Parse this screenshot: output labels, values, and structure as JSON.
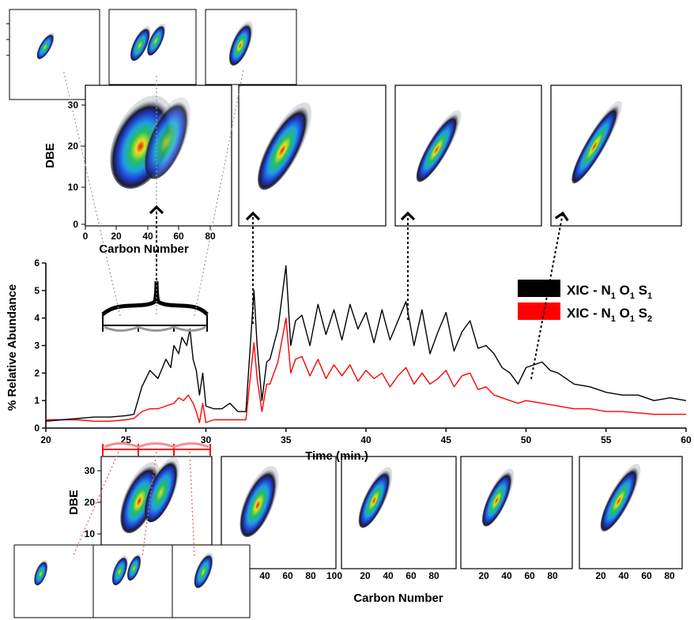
{
  "chart_data": [
    {
      "type": "line",
      "xlabel": "Time (min.)",
      "ylabel": "% Relative Abundance",
      "xlim": [
        20,
        60
      ],
      "ylim": [
        0,
        6
      ],
      "x_ticks": [
        "20",
        "25",
        "30",
        "35",
        "40",
        "45",
        "50",
        "55",
        "60"
      ],
      "y_ticks": [
        "0",
        "1",
        "2",
        "3",
        "4",
        "5",
        "6"
      ],
      "grid": false,
      "legend": {
        "placement": "right"
      },
      "series": [
        {
          "name": "XIC - N1 O1 S1",
          "label": {
            "base": "XIC - N",
            "s1": "1",
            "mid1": " O",
            "s2": "1",
            "mid2": " S",
            "s3": "1"
          },
          "color": "#000000",
          "x": [
            20,
            21,
            22,
            23,
            24,
            25,
            25.5,
            26,
            26.5,
            27,
            27.5,
            27.8,
            28,
            28.3,
            28.5,
            28.8,
            29,
            29.2,
            29.4,
            29.6,
            29.8,
            30,
            30.5,
            31,
            31.5,
            32,
            32.5,
            33,
            33.2,
            33.5,
            33.8,
            34,
            34.5,
            35,
            35.3,
            35.6,
            36,
            36.5,
            37,
            37.5,
            38,
            38.5,
            39,
            39.5,
            40,
            40.5,
            41,
            41.5,
            42,
            42.5,
            43,
            43.5,
            44,
            44.5,
            45,
            45.5,
            46,
            46.5,
            47,
            47.5,
            48,
            48.5,
            49,
            49.5,
            50,
            50.5,
            51,
            51.5,
            52,
            53,
            54,
            55,
            56,
            57,
            58,
            59,
            60
          ],
          "y": [
            0.25,
            0.3,
            0.35,
            0.4,
            0.4,
            0.45,
            0.5,
            1.5,
            2.1,
            1.8,
            2.5,
            2.2,
            3.0,
            2.7,
            3.3,
            3.0,
            3.6,
            2.5,
            2.1,
            1.2,
            2.0,
            0.8,
            0.7,
            0.7,
            0.9,
            0.6,
            0.6,
            5.0,
            3.0,
            1.0,
            2.4,
            2.5,
            3.6,
            5.9,
            3.0,
            3.9,
            4.1,
            3.0,
            4.5,
            3.4,
            4.3,
            3.2,
            4.5,
            3.6,
            4.2,
            3.1,
            4.3,
            3.2,
            3.9,
            4.6,
            3.0,
            4.3,
            2.7,
            3.5,
            4.2,
            2.8,
            3.5,
            3.9,
            2.9,
            3.0,
            2.7,
            2.2,
            2.0,
            1.6,
            2.2,
            2.3,
            2.4,
            2.1,
            2.0,
            1.6,
            1.5,
            1.3,
            1.2,
            1.2,
            1.0,
            1.1,
            1.0
          ]
        },
        {
          "name": "XIC - N1 O1 S2",
          "label": {
            "base": "XIC - N",
            "s1": "1",
            "mid1": " O",
            "s2": "1",
            "mid2": " S",
            "s3": "2"
          },
          "color": "#ff0000",
          "x": [
            20,
            21,
            22,
            23,
            24,
            25,
            25.5,
            26,
            26.5,
            27,
            27.5,
            28,
            28.3,
            28.6,
            28.9,
            29.2,
            29.4,
            29.6,
            29.8,
            30,
            30.5,
            31,
            31.5,
            32,
            32.5,
            33,
            33.2,
            33.5,
            33.8,
            34,
            34.5,
            35,
            35.3,
            35.6,
            36,
            36.5,
            37,
            37.5,
            38,
            38.5,
            39,
            39.5,
            40,
            40.5,
            41,
            41.5,
            42,
            42.5,
            43,
            43.5,
            44,
            44.5,
            45,
            45.5,
            46,
            46.5,
            47,
            47.5,
            48,
            48.5,
            49,
            49.5,
            50,
            51,
            52,
            53,
            54,
            55,
            56,
            57,
            58,
            59,
            60
          ],
          "y": [
            0.3,
            0.3,
            0.3,
            0.25,
            0.25,
            0.3,
            0.35,
            0.6,
            0.7,
            0.7,
            0.8,
            0.9,
            1.1,
            1.0,
            1.2,
            0.9,
            0.6,
            0.2,
            0.9,
            0.2,
            0.3,
            0.3,
            0.3,
            0.3,
            0.3,
            3.1,
            1.8,
            0.6,
            1.6,
            1.6,
            2.4,
            4.0,
            2.0,
            2.5,
            2.6,
            1.9,
            2.5,
            1.8,
            2.3,
            1.9,
            2.3,
            1.7,
            2.1,
            1.8,
            2.0,
            1.5,
            1.9,
            2.2,
            1.6,
            2.0,
            1.6,
            1.8,
            2.1,
            1.5,
            1.9,
            2.0,
            1.4,
            1.5,
            1.2,
            1.1,
            1.0,
            0.9,
            1.0,
            0.9,
            0.8,
            0.7,
            0.7,
            0.6,
            0.6,
            0.55,
            0.5,
            0.5,
            0.5
          ]
        }
      ]
    },
    {
      "type": "heatmap",
      "xlabel": "Carbon Number",
      "ylabel": "DBE",
      "x_ticks": [
        "0",
        "20",
        "40",
        "60",
        "80"
      ],
      "y_ticks": [
        "0",
        "10",
        "20",
        "30"
      ]
    },
    {
      "type": "heatmap",
      "xlabel": "Carbon Number",
      "ylabel": "DBE",
      "y_ticks": [
        "10",
        "20",
        "30"
      ],
      "panel_x_ticks": [
        [
          "40",
          "60",
          "80",
          "100"
        ],
        [
          "20",
          "40",
          "60",
          "80"
        ],
        [
          "20",
          "40",
          "60",
          "80"
        ],
        [
          "20",
          "40",
          "60",
          "80"
        ]
      ]
    }
  ],
  "colors": {
    "series1": "#000000",
    "series2": "#ff0000",
    "heatmap": [
      "#1a1a2e",
      "#1f3fd0",
      "#1ea0e0",
      "#22c060",
      "#e8e020",
      "#e01818"
    ]
  }
}
